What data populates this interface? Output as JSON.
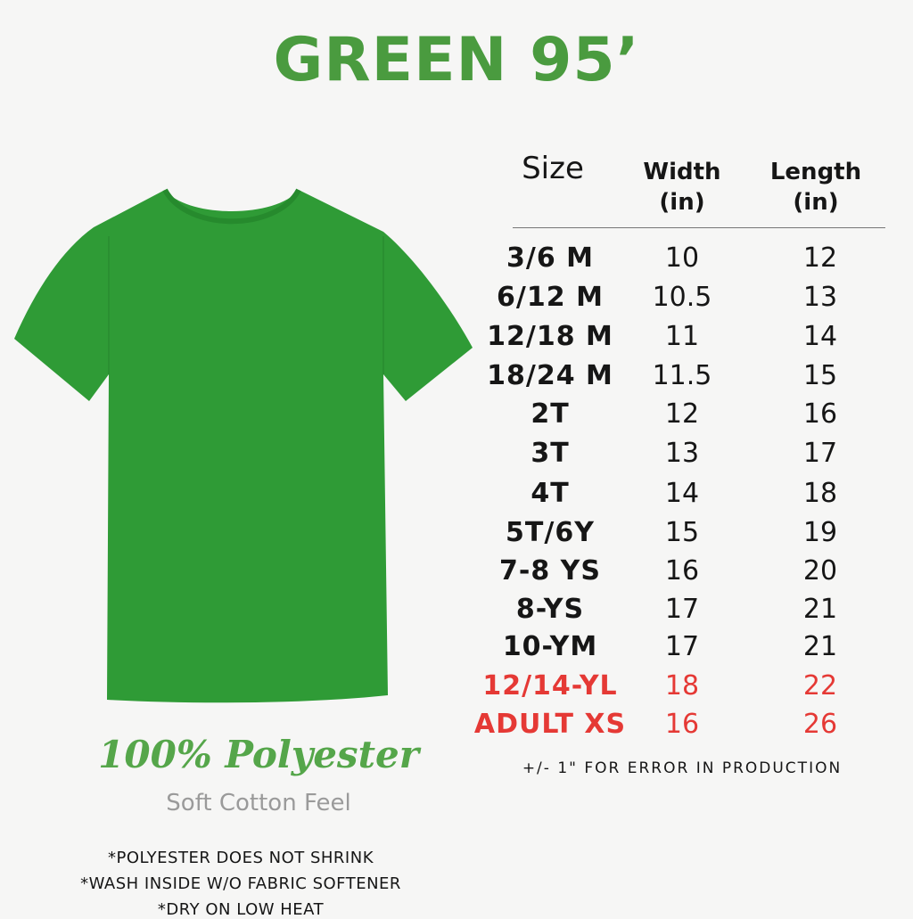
{
  "title": "GREEN 95’",
  "shirt_color": "#2f9b36",
  "table": {
    "headers": {
      "size": "Size",
      "width": "Width",
      "width_unit": "(in)",
      "length": "Length",
      "length_unit": "(in)"
    },
    "rows": [
      {
        "size": "3/6 M",
        "width": "10",
        "length": "12"
      },
      {
        "size": "6/12 M",
        "width": "10.5",
        "length": "13"
      },
      {
        "size": "12/18 M",
        "width": "11",
        "length": "14"
      },
      {
        "size": "18/24 M",
        "width": "11.5",
        "length": "15"
      },
      {
        "size": "2T",
        "width": "12",
        "length": "16"
      },
      {
        "size": "3T",
        "width": "13",
        "length": "17"
      },
      {
        "size": "4T",
        "width": "14",
        "length": "18"
      },
      {
        "size": "5T/6Y",
        "width": "15",
        "length": "19"
      },
      {
        "size": "7-8 YS",
        "width": "16",
        "length": "20"
      },
      {
        "size": "8-YS",
        "width": "17",
        "length": "21"
      },
      {
        "size": "10-YM",
        "width": "17",
        "length": "21"
      },
      {
        "size": "12/14-YL",
        "width": "18",
        "length": "22"
      },
      {
        "size": "ADULT XS",
        "width": "16",
        "length": "26"
      }
    ],
    "highlight_color": "#e53935",
    "note": "+/- 1\" FOR ERROR IN PRODUCTION"
  },
  "material": {
    "name": "100% Polyester",
    "tagline": "Soft Cotton Feel"
  },
  "care": [
    "*POLYESTER DOES NOT SHRINK",
    "*WASH INSIDE W/O FABRIC SOFTENER",
    "*DRY ON LOW HEAT"
  ]
}
